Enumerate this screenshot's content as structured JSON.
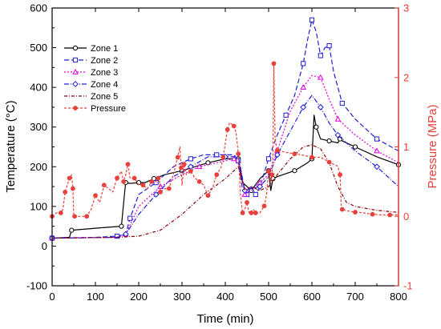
{
  "chart_data": {
    "type": "line",
    "xlabel": "Time (min)",
    "ylabel": "Temperature (°C)",
    "y2label": "Pressure (MPa)",
    "xlim": [
      0,
      800
    ],
    "ylim": [
      -100,
      600
    ],
    "y2lim": [
      -1,
      3
    ],
    "xticks": [
      "0",
      "100",
      "200",
      "300",
      "400",
      "500",
      "600",
      "700",
      "800"
    ],
    "yticks": [
      "-100",
      "0",
      "100",
      "200",
      "300",
      "400",
      "500",
      "600"
    ],
    "y2ticks": [
      "-1",
      "0",
      "1",
      "2",
      "3"
    ],
    "legend_position": "top-left",
    "grid": false,
    "colors": {
      "zone1": "#000000",
      "zone2": "#1f1fd6",
      "zone3": "#e000e0",
      "zone4": "#1f1fd6",
      "zone5": "#8b0000",
      "pressure": "#e8403a",
      "right_axis": "#e8403a"
    },
    "series": [
      {
        "name": "Zone 1",
        "key": "zone1",
        "axis": "left",
        "dash": "",
        "marker": "circle",
        "x": [
          0,
          40,
          45,
          100,
          160,
          168,
          170,
          180,
          200,
          215,
          235,
          260,
          300,
          330,
          360,
          400,
          430,
          440,
          460,
          480,
          500,
          505,
          510,
          520,
          560,
          590,
          600,
          605,
          610,
          620,
          640,
          660,
          665,
          670,
          700,
          750,
          800
        ],
        "y": [
          20,
          22,
          40,
          45,
          50,
          140,
          160,
          158,
          160,
          160,
          170,
          180,
          190,
          200,
          210,
          220,
          220,
          160,
          140,
          170,
          190,
          140,
          170,
          175,
          190,
          210,
          220,
          330,
          300,
          270,
          265,
          260,
          270,
          265,
          250,
          225,
          205
        ]
      },
      {
        "name": "Zone 2",
        "key": "zone2",
        "axis": "left",
        "dash": "6,3",
        "marker": "square",
        "x": [
          0,
          100,
          150,
          170,
          180,
          200,
          240,
          280,
          320,
          350,
          380,
          420,
          430,
          440,
          450,
          460,
          470,
          480,
          500,
          520,
          540,
          560,
          580,
          590,
          600,
          610,
          620,
          630,
          640,
          650,
          670,
          700,
          750,
          800
        ],
        "y": [
          20,
          22,
          25,
          30,
          70,
          130,
          160,
          200,
          220,
          230,
          230,
          230,
          215,
          140,
          130,
          150,
          130,
          150,
          220,
          280,
          330,
          380,
          460,
          520,
          570,
          540,
          480,
          500,
          505,
          440,
          360,
          320,
          270,
          240
        ]
      },
      {
        "name": "Zone 3",
        "key": "zone3",
        "axis": "left",
        "dash": "2,2",
        "marker": "triangle",
        "x": [
          0,
          150,
          170,
          200,
          250,
          300,
          340,
          380,
          420,
          435,
          445,
          460,
          480,
          500,
          520,
          550,
          580,
          600,
          620,
          640,
          660,
          700,
          750,
          800
        ],
        "y": [
          20,
          22,
          30,
          100,
          150,
          180,
          200,
          210,
          220,
          200,
          130,
          140,
          160,
          180,
          240,
          340,
          400,
          430,
          425,
          370,
          320,
          280,
          240,
          210
        ]
      },
      {
        "name": "Zone 4",
        "key": "zone4",
        "axis": "left",
        "dash": "6,2,1,2",
        "marker": "diamond",
        "x": [
          0,
          150,
          170,
          200,
          240,
          280,
          320,
          360,
          400,
          430,
          445,
          460,
          480,
          500,
          520,
          550,
          580,
          600,
          620,
          640,
          660,
          700,
          750,
          800
        ],
        "y": [
          20,
          22,
          30,
          80,
          130,
          175,
          200,
          225,
          225,
          225,
          140,
          145,
          150,
          175,
          230,
          290,
          350,
          380,
          350,
          310,
          280,
          240,
          200,
          150
        ]
      },
      {
        "name": "Zone 5",
        "key": "zone5",
        "axis": "left",
        "dash": "4,2,1,2",
        "marker": "none",
        "x": [
          0,
          150,
          200,
          250,
          300,
          350,
          400,
          430,
          445,
          460,
          480,
          500,
          520,
          550,
          580,
          600,
          620,
          640,
          660,
          680,
          700,
          750,
          800
        ],
        "y": [
          20,
          22,
          25,
          40,
          80,
          130,
          170,
          200,
          140,
          150,
          140,
          150,
          180,
          220,
          250,
          255,
          245,
          210,
          150,
          110,
          100,
          90,
          85
        ]
      },
      {
        "name": "Pressure",
        "key": "pressure",
        "axis": "right",
        "dash": "3,2",
        "marker": "circle-filled",
        "x": [
          0,
          10,
          20,
          25,
          30,
          35,
          40,
          45,
          48,
          50,
          52,
          60,
          80,
          90,
          100,
          110,
          120,
          140,
          150,
          160,
          165,
          170,
          175,
          180,
          190,
          200,
          210,
          220,
          230,
          240,
          245,
          248,
          250,
          260,
          270,
          280,
          290,
          295,
          298,
          300,
          305,
          310,
          320,
          330,
          340,
          350,
          360,
          370,
          380,
          390,
          395,
          400,
          405,
          410,
          420,
          425,
          430,
          435,
          440,
          445,
          450,
          455,
          460,
          465,
          470,
          480,
          490,
          495,
          500,
          505,
          508,
          510,
          512,
          515,
          520,
          540,
          560,
          580,
          600,
          620,
          640,
          660,
          665,
          668,
          670,
          680,
          700,
          720,
          740,
          760,
          780,
          800
        ],
        "y": [
          0,
          0.05,
          0.05,
          0.1,
          0.35,
          0.45,
          0.55,
          0.6,
          0.4,
          0,
          0,
          0,
          0,
          0.1,
          0.3,
          0.2,
          0.45,
          0.35,
          0.55,
          0.65,
          0.5,
          0.6,
          0.75,
          0.55,
          0.55,
          0.45,
          0.45,
          0.4,
          0.5,
          0.5,
          0.55,
          0.5,
          0.35,
          0.4,
          0.4,
          0.6,
          0.85,
          1,
          0.7,
          0.45,
          0.75,
          0.6,
          0.65,
          0.55,
          0.5,
          0.45,
          0.3,
          0.4,
          0.6,
          0.7,
          0.85,
          1.05,
          1.25,
          1.35,
          1.3,
          1.2,
          0.9,
          0.3,
          0.05,
          0.1,
          0.2,
          0.05,
          0.05,
          0.1,
          0.05,
          0.05,
          0.15,
          0.3,
          0.65,
          0.5,
          0.6,
          0.9,
          2.2,
          1.1,
          0.95,
          0.92,
          0.9,
          0.88,
          0.85,
          0.85,
          0.78,
          0.72,
          0.6,
          0.1,
          0.1,
          0.08,
          0.06,
          0.05,
          0.03,
          0.02,
          0.02,
          0.02
        ]
      }
    ]
  }
}
